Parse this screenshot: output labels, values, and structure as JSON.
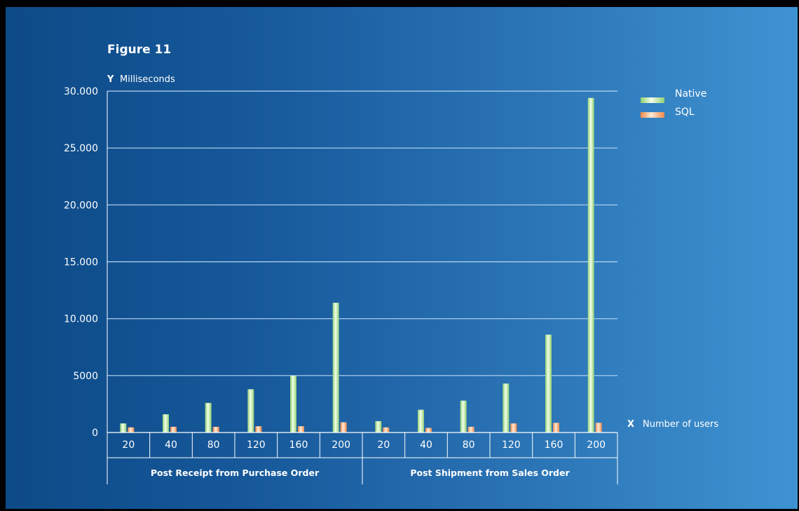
{
  "chart_data": {
    "type": "bar",
    "title": "Figure 11",
    "ylabel_letter": "Y",
    "ylabel": "Milliseconds",
    "xlabel_letter": "X",
    "xlabel": "Number of users",
    "ylim": [
      0,
      30000
    ],
    "y_ticks": [
      {
        "value": 0,
        "label": "0"
      },
      {
        "value": 5000,
        "label": "5000"
      },
      {
        "value": 10000,
        "label": "10.000"
      },
      {
        "value": 15000,
        "label": "15.000"
      },
      {
        "value": 20000,
        "label": "20.000"
      },
      {
        "value": 25000,
        "label": "25.000"
      },
      {
        "value": 30000,
        "label": "30.000"
      }
    ],
    "grid": true,
    "legend_position": "top-right",
    "groups": [
      "Post Receipt from Purchase Order",
      "Post Shipment from Sales Order"
    ],
    "categories": [
      "20",
      "40",
      "80",
      "120",
      "160",
      "200",
      "20",
      "40",
      "80",
      "120",
      "160",
      "200"
    ],
    "series": [
      {
        "name": "Native",
        "color": "#c8eeb0",
        "values": [
          800,
          1600,
          2600,
          3800,
          5000,
          11400,
          1000,
          2000,
          2800,
          4300,
          8600,
          29400
        ]
      },
      {
        "name": "SQL",
        "color": "#f6b27e",
        "values": [
          450,
          500,
          500,
          550,
          550,
          900,
          450,
          400,
          500,
          800,
          850,
          850
        ]
      }
    ]
  }
}
